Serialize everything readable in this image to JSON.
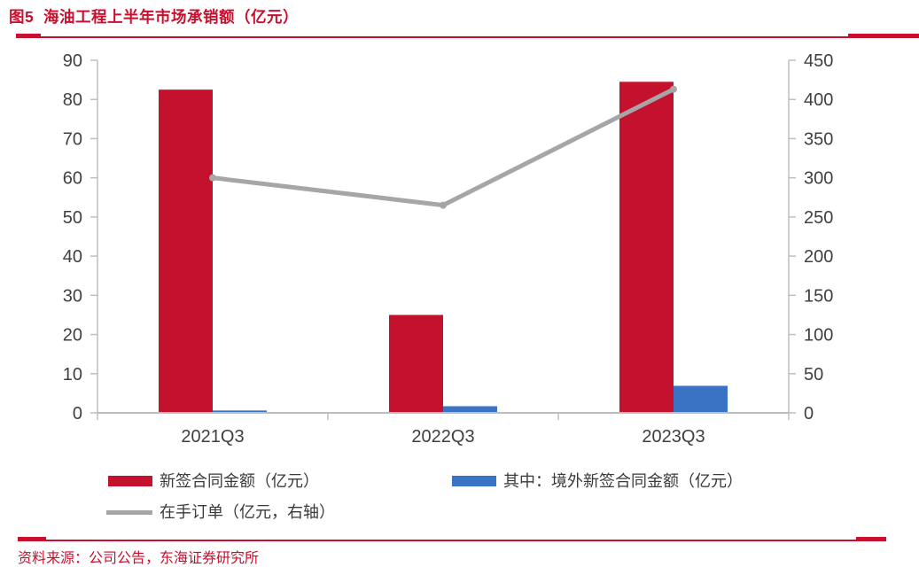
{
  "header": {
    "title": "图5  海油工程上半年市场承销额（亿元）"
  },
  "footer": {
    "source": "资料来源：公司公告，东海证券研究所"
  },
  "colors": {
    "accent_red": "#C8102E",
    "bar_red": "#C4122E",
    "bar_blue": "#3B73C4",
    "line_gray": "#A6A6A6",
    "axis_line": "#BFBFBF",
    "axis_text": "#404040"
  },
  "chart_data": {
    "type": "bar",
    "subtype": "grouped-bars-with-line",
    "title": "海油工程上半年市场承销额（亿元）",
    "categories": [
      "2021Q3",
      "2022Q3",
      "2023Q3"
    ],
    "series": [
      {
        "name": "新签合同金额（亿元）",
        "type": "bar",
        "axis": "left",
        "color": "#C4122E",
        "values": [
          82.5,
          25,
          84.5
        ]
      },
      {
        "name": "其中：境外新签合同金额（亿元）",
        "type": "bar",
        "axis": "left",
        "color": "#3B73C4",
        "values": [
          0.6,
          1.7,
          6.9
        ]
      },
      {
        "name": "在手订单（亿元，右轴）",
        "type": "line",
        "axis": "right",
        "color": "#A6A6A6",
        "values": [
          300,
          265,
          413
        ]
      }
    ],
    "left_axis": {
      "min": 0,
      "max": 90,
      "step": 10
    },
    "right_axis": {
      "min": 0,
      "max": 450,
      "step": 50
    },
    "grid": "off",
    "legend_position": "bottom"
  }
}
